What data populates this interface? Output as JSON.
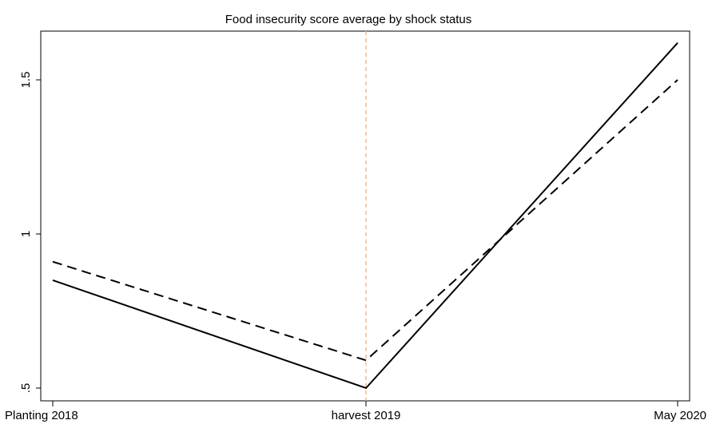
{
  "chart_data": {
    "type": "line",
    "title": "Food insecurity score average by shock status",
    "xlabel": "",
    "ylabel": "",
    "categories": [
      "Planting 2018",
      "harvest 2019",
      "May 2020"
    ],
    "y_ticks": [
      0.5,
      1,
      1.5
    ],
    "y_tick_labels": [
      ".5",
      "1",
      "1.5"
    ],
    "ylim": [
      0.5,
      1.62
    ],
    "grid": false,
    "legend": "none",
    "series": [
      {
        "values": [
          0.85,
          0.5,
          1.62
        ],
        "style": "solid",
        "color": "#000000"
      },
      {
        "values": [
          0.91,
          0.59,
          1.5
        ],
        "style": "dashed",
        "color": "#000000"
      }
    ],
    "annotations": [
      {
        "type": "vertical-line",
        "category": "harvest 2019",
        "style": "dashed",
        "color": "#f5b98a"
      }
    ]
  }
}
